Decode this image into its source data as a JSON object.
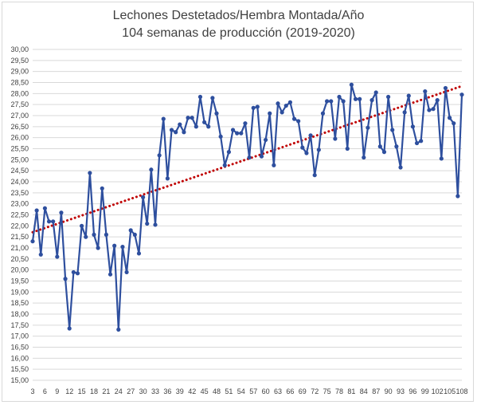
{
  "chart_data": {
    "type": "line",
    "title": "Lechones Destetados/Hembra Montada/Año",
    "subtitle": "104 semanas de producción (2019-2020)",
    "xlabel": "",
    "ylabel": "",
    "x_start": 3,
    "x_end": 108,
    "x_tick_labels": [
      "3",
      "6",
      "9",
      "12",
      "15",
      "18",
      "21",
      "24",
      "27",
      "30",
      "33",
      "36",
      "39",
      "42",
      "45",
      "48",
      "51",
      "54",
      "57",
      "60",
      "63",
      "66",
      "69",
      "72",
      "75",
      "78",
      "81",
      "84",
      "87",
      "90",
      "93",
      "96",
      "99",
      "102",
      "105",
      "108"
    ],
    "ylim": [
      15,
      30
    ],
    "y_tick_labels": [
      "15,00",
      "15,50",
      "16,00",
      "16,50",
      "17,00",
      "17,50",
      "18,00",
      "18,50",
      "19,00",
      "19,50",
      "20,00",
      "20,50",
      "21,00",
      "21,50",
      "22,00",
      "22,50",
      "23,00",
      "23,50",
      "24,00",
      "24,50",
      "25,00",
      "25,50",
      "26,00",
      "26,50",
      "27,00",
      "27,50",
      "28,00",
      "28,50",
      "29,00",
      "29,50",
      "30,00"
    ],
    "grid": true,
    "legend": "none",
    "series": [
      {
        "color": "#2e4f9e",
        "values": [
          21.3,
          22.7,
          20.7,
          22.8,
          22.2,
          22.2,
          20.6,
          22.6,
          19.6,
          17.35,
          19.9,
          19.85,
          22.0,
          21.5,
          24.4,
          21.6,
          21.0,
          23.7,
          21.6,
          19.8,
          21.1,
          17.3,
          21.05,
          19.9,
          21.8,
          21.6,
          20.75,
          23.3,
          22.1,
          24.55,
          22.05,
          25.2,
          26.85,
          24.15,
          26.35,
          26.25,
          26.6,
          26.25,
          26.9,
          26.9,
          26.5,
          27.85,
          26.7,
          26.5,
          27.8,
          27.1,
          26.05,
          24.75,
          25.35,
          26.35,
          26.2,
          26.2,
          26.65,
          25.1,
          27.35,
          27.4,
          25.15,
          25.9,
          27.1,
          24.75,
          27.55,
          27.15,
          27.45,
          27.6,
          26.85,
          26.75,
          25.55,
          25.3,
          26.1,
          24.3,
          25.45,
          27.1,
          27.65,
          27.65,
          25.95,
          27.85,
          27.65,
          25.5,
          28.4,
          27.75,
          27.75,
          25.1,
          26.45,
          27.7,
          28.05,
          25.6,
          25.35,
          27.85,
          26.35,
          25.6,
          24.65,
          27.15,
          27.9,
          26.5,
          25.75,
          25.85,
          28.1,
          27.25,
          27.3,
          27.7,
          25.05,
          28.25,
          26.9,
          26.65,
          23.35,
          27.95
        ]
      }
    ],
    "trendline": {
      "type": "linear",
      "color": "#c00000",
      "style": "dotted"
    }
  }
}
